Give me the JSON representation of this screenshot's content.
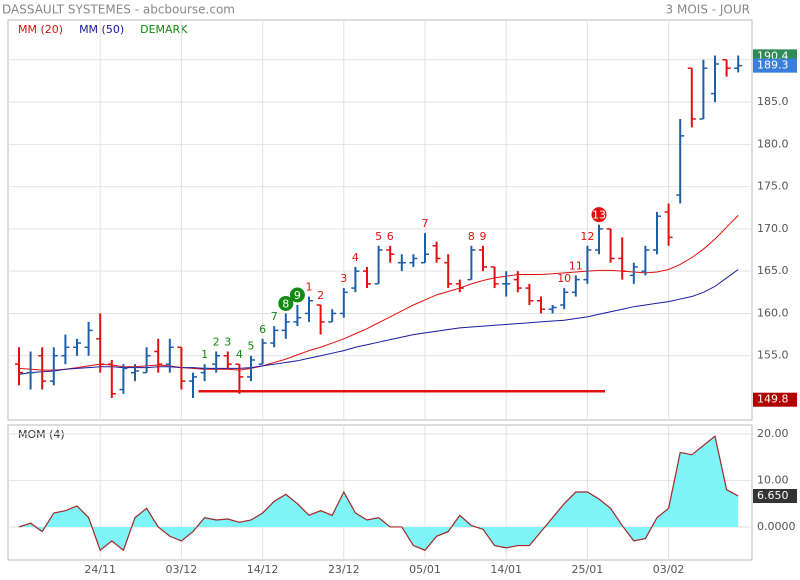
{
  "chart_data": {
    "type": "ohlc",
    "title": "DASSAULT SYSTEMES - abcbourse.com",
    "subtitle": "3 MOIS - JOUR",
    "categories": [
      null,
      null,
      null,
      null,
      null,
      null,
      null,
      "24/11",
      null,
      null,
      null,
      null,
      null,
      null,
      "03/12",
      null,
      null,
      null,
      null,
      null,
      null,
      "14/12",
      null,
      null,
      null,
      null,
      null,
      null,
      "23/12",
      null,
      null,
      null,
      null,
      null,
      null,
      "05/01",
      null,
      null,
      null,
      null,
      null,
      null,
      "14/01",
      null,
      null,
      null,
      null,
      null,
      null,
      "25/01",
      null,
      null,
      null,
      null,
      null,
      null,
      "03/02",
      null,
      null,
      null,
      null,
      null,
      null
    ],
    "open": [
      154,
      153,
      155,
      152,
      155,
      156,
      156,
      157,
      154,
      151,
      153,
      153,
      155.5,
      154,
      156,
      152,
      153,
      154,
      155,
      154,
      152.5,
      154,
      156.5,
      158,
      159,
      160,
      161,
      159,
      160,
      163,
      165,
      163.5,
      167.5,
      166,
      166,
      166,
      168,
      166,
      163.5,
      164,
      167.5,
      165.5,
      163.5,
      164,
      163,
      161.5,
      160.5,
      161,
      162.5,
      164,
      167.5,
      170,
      166.5,
      164.5,
      165,
      167.5,
      172,
      174,
      189,
      183,
      186,
      190,
      189
    ],
    "high": [
      156,
      155.5,
      156,
      156,
      157.5,
      157,
      159,
      160,
      154.5,
      154,
      154,
      156,
      157,
      157,
      156,
      153,
      154,
      155.5,
      155.5,
      154,
      155,
      157,
      158.5,
      160,
      161,
      162,
      161,
      160.5,
      163,
      165.5,
      165.5,
      168,
      168,
      167,
      167,
      169.5,
      168.5,
      167,
      164,
      168,
      168,
      165.5,
      165,
      165,
      163.5,
      162,
      161,
      163,
      164.5,
      168,
      170.5,
      170,
      169,
      166,
      168,
      172,
      173,
      183,
      189,
      190,
      190.5,
      190,
      190.5
    ],
    "low": [
      151.5,
      151,
      151,
      151.5,
      154,
      155,
      155,
      153,
      150,
      150.5,
      152,
      153,
      153,
      153,
      151,
      150,
      152,
      153,
      153.5,
      150.5,
      152,
      154,
      156,
      157,
      158.5,
      159,
      157.5,
      159,
      159.5,
      162.5,
      163,
      163.5,
      166,
      165,
      165.5,
      166,
      166,
      163,
      162.5,
      164,
      165,
      163,
      162,
      162.5,
      161,
      160,
      160,
      160.5,
      162,
      163.5,
      167,
      166,
      164,
      163.5,
      164.5,
      167,
      168,
      173,
      182,
      183,
      185,
      188,
      188.5
    ],
    "close": [
      153,
      153,
      152,
      155,
      156,
      156.5,
      158,
      154,
      150.5,
      153.5,
      153.2,
      155,
      154,
      156,
      152,
      152.5,
      153.5,
      155,
      154,
      152.5,
      154.5,
      156.5,
      158,
      159,
      159.5,
      161.5,
      159,
      160,
      162.5,
      165,
      163.5,
      167.5,
      167,
      166,
      166.5,
      167,
      166.5,
      163.5,
      163,
      167.5,
      165.5,
      163.5,
      163.5,
      163,
      161.5,
      160.5,
      160.7,
      162.5,
      164,
      167.5,
      170,
      166.5,
      165,
      165.5,
      167.5,
      171.5,
      169,
      181,
      183,
      189,
      189.5,
      189,
      189.3
    ],
    "up_color": "#1f5fa8",
    "down_color": "#e01010",
    "series": [
      {
        "name": "MM (20)",
        "color": "#e01010",
        "values": [
          153.5,
          153.4,
          153.3,
          153.3,
          153.4,
          153.6,
          153.8,
          154.0,
          153.9,
          153.7,
          153.7,
          153.8,
          153.9,
          153.8,
          153.6,
          153.5,
          153.4,
          153.4,
          153.4,
          153.3,
          153.5,
          153.8,
          154.2,
          154.6,
          155.1,
          155.6,
          156.0,
          156.5,
          157.0,
          157.6,
          158.2,
          158.9,
          159.6,
          160.3,
          161.0,
          161.6,
          162.2,
          162.6,
          163.0,
          163.5,
          163.9,
          164.2,
          164.4,
          164.6,
          164.6,
          164.6,
          164.7,
          164.8,
          164.9,
          165.0,
          165.1,
          165.1,
          165.0,
          164.9,
          164.8,
          164.9,
          165.2,
          165.8,
          166.6,
          167.6,
          168.8,
          170.2,
          171.6
        ]
      },
      {
        "name": "MM (50)",
        "color": "#1a1aa0",
        "values": [
          152.8,
          153.0,
          153.1,
          153.2,
          153.4,
          153.5,
          153.6,
          153.7,
          153.7,
          153.6,
          153.6,
          153.6,
          153.7,
          153.7,
          153.6,
          153.6,
          153.5,
          153.5,
          153.5,
          153.5,
          153.6,
          153.8,
          154.0,
          154.2,
          154.4,
          154.7,
          155.0,
          155.3,
          155.6,
          156.0,
          156.3,
          156.6,
          156.9,
          157.2,
          157.5,
          157.7,
          157.9,
          158.1,
          158.3,
          158.4,
          158.5,
          158.6,
          158.7,
          158.8,
          158.9,
          159.0,
          159.1,
          159.2,
          159.4,
          159.6,
          159.9,
          160.2,
          160.5,
          160.8,
          161.0,
          161.2,
          161.4,
          161.7,
          162.0,
          162.5,
          163.2,
          164.2,
          165.2
        ]
      }
    ],
    "demark": {
      "name": "DEMARK",
      "color": "#138a13",
      "counts": [
        {
          "index": 16,
          "count": 1,
          "color": "#138a13",
          "circled": false
        },
        {
          "index": 17,
          "count": 2,
          "color": "#138a13",
          "circled": false
        },
        {
          "index": 18,
          "count": 3,
          "color": "#138a13",
          "circled": false
        },
        {
          "index": 19,
          "count": 4,
          "color": "#138a13",
          "circled": false
        },
        {
          "index": 20,
          "count": 5,
          "color": "#138a13",
          "circled": false
        },
        {
          "index": 21,
          "count": 6,
          "color": "#138a13",
          "circled": false
        },
        {
          "index": 22,
          "count": 7,
          "color": "#138a13",
          "circled": false
        },
        {
          "index": 23,
          "count": 8,
          "color": "#138a13",
          "circled": true
        },
        {
          "index": 24,
          "count": 9,
          "color": "#138a13",
          "circled": true
        },
        {
          "index": 25,
          "count": 1,
          "color": "#e01010",
          "circled": false
        },
        {
          "index": 26,
          "count": 2,
          "color": "#e01010",
          "circled": false
        },
        {
          "index": 28,
          "count": 3,
          "color": "#e01010",
          "circled": false
        },
        {
          "index": 29,
          "count": 4,
          "color": "#e01010",
          "circled": false
        },
        {
          "index": 31,
          "count": 5,
          "color": "#e01010",
          "circled": false
        },
        {
          "index": 32,
          "count": 6,
          "color": "#e01010",
          "circled": false
        },
        {
          "index": 35,
          "count": 7,
          "color": "#e01010",
          "circled": false
        },
        {
          "index": 39,
          "count": 8,
          "color": "#e01010",
          "circled": false
        },
        {
          "index": 40,
          "count": 9,
          "color": "#e01010",
          "circled": false
        },
        {
          "index": 47,
          "count": 10,
          "color": "#e01010",
          "circled": false
        },
        {
          "index": 48,
          "count": 11,
          "color": "#e01010",
          "circled": false
        },
        {
          "index": 49,
          "count": 12,
          "color": "#e01010",
          "circled": false
        },
        {
          "index": 50,
          "count": 13,
          "color": "#e01010",
          "circled": true
        }
      ]
    },
    "support": {
      "value": 150.8,
      "start": 16,
      "end": 50,
      "color": "#e01010"
    },
    "ylim": [
      147.4,
      194.7
    ],
    "yticks": [
      {
        "value": 155,
        "label": "155.0"
      },
      {
        "value": 160,
        "label": "160.0"
      },
      {
        "value": 165,
        "label": "165.0"
      },
      {
        "value": 170,
        "label": "170.0"
      },
      {
        "value": 175,
        "label": "175.0"
      },
      {
        "value": 180,
        "label": "180.0"
      },
      {
        "value": 185,
        "label": "185.0"
      },
      {
        "value": 190,
        "label": "190.0"
      }
    ],
    "price_labels": [
      {
        "value": 190.4,
        "label": "190.4",
        "color": "#2e8b57"
      },
      {
        "value": 189.3,
        "label": "189.3",
        "color": "#3b7ddd"
      },
      {
        "value": 149.8,
        "label": "149.8",
        "color": "#b00000"
      }
    ],
    "grid": true,
    "indicator": {
      "type": "area",
      "name": "MOM (4)",
      "color": "#a02828",
      "fill": "#7ff5f8",
      "values": [
        0,
        0.8,
        -1,
        3,
        3.5,
        4.5,
        2,
        -5,
        -3,
        -5,
        2,
        4,
        0,
        -2,
        -3,
        -1,
        2,
        1.5,
        1.7,
        1,
        1.5,
        3,
        5.5,
        7,
        5,
        2.5,
        3.5,
        2.5,
        7.5,
        3,
        1.5,
        2,
        0,
        0,
        -4,
        -5,
        -2,
        -1,
        2.5,
        0.3,
        -0.5,
        -4,
        -4.5,
        -4,
        -4,
        -1,
        2,
        5,
        7.5,
        7.5,
        6,
        4,
        0.3,
        -3,
        -2.5,
        2,
        4,
        16,
        15.5,
        17.5,
        19.5,
        8,
        6.65
      ],
      "ylim": [
        -7.1,
        21.9
      ],
      "yticks": [
        {
          "value": 20,
          "label": "20.00"
        },
        {
          "value": 10,
          "label": "10.00"
        },
        {
          "value": 0,
          "label": "0.0000"
        }
      ],
      "value_label": {
        "value": 6.65,
        "label": "6.650",
        "color": "#333333"
      }
    }
  }
}
